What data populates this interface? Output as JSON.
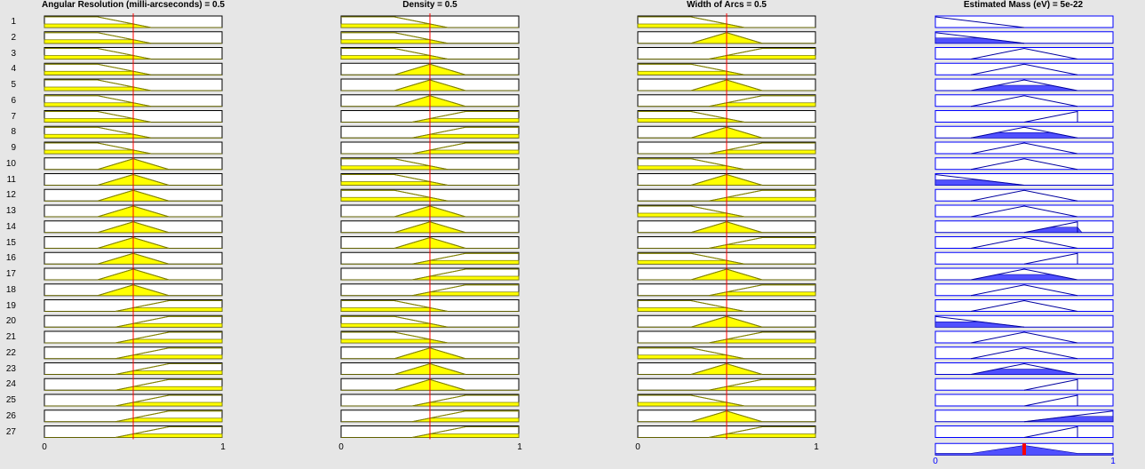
{
  "inputs": [
    {
      "title": "Angular Resolution (milli-arcseconds) = 0.5",
      "value": 0.5,
      "range": [
        0,
        1
      ],
      "tick_min": "0",
      "tick_max": "1",
      "mf_per_rule": [
        "low",
        "low",
        "low",
        "low",
        "low",
        "low",
        "low",
        "low",
        "low",
        "med",
        "med",
        "med",
        "med",
        "med",
        "med",
        "med",
        "med",
        "med",
        "high",
        "high",
        "high",
        "high",
        "high",
        "high",
        "high",
        "high",
        "high"
      ]
    },
    {
      "title": "Density = 0.5",
      "value": 0.5,
      "range": [
        0,
        1
      ],
      "tick_min": "0",
      "tick_max": "1",
      "mf_per_rule": [
        "low",
        "low",
        "low",
        "med",
        "med",
        "med",
        "high",
        "high",
        "high",
        "low",
        "low",
        "low",
        "med",
        "med",
        "med",
        "high",
        "high",
        "high",
        "low",
        "low",
        "low",
        "med",
        "med",
        "med",
        "high",
        "high",
        "high"
      ]
    },
    {
      "title": "Width of Arcs = 0.5",
      "value": 0.5,
      "range": [
        0,
        1
      ],
      "tick_min": "0",
      "tick_max": "1",
      "mf_per_rule": [
        "low",
        "med",
        "high",
        "low",
        "med",
        "high",
        "low",
        "med",
        "high",
        "low",
        "med",
        "high",
        "low",
        "med",
        "high",
        "low",
        "med",
        "high",
        "low",
        "med",
        "high",
        "low",
        "med",
        "high",
        "low",
        "med",
        "high"
      ]
    }
  ],
  "output": {
    "title": "Estimated Mass (eV) = 5e-22",
    "value": 0.5,
    "range": [
      0,
      1
    ],
    "tick_min": "0",
    "tick_max": "1",
    "mf_per_rule": [
      "vlow",
      "vlow",
      "low",
      "low",
      "med",
      "low",
      "high",
      "med",
      "med",
      "low",
      "vlow",
      "low",
      "med",
      "high",
      "med",
      "high",
      "med",
      "med",
      "low",
      "vlow",
      "low",
      "med",
      "med",
      "high",
      "high",
      "vhigh",
      "high"
    ],
    "firing": [
      0,
      1,
      0,
      0,
      1,
      0,
      0,
      1,
      0,
      0,
      1,
      0,
      0,
      1,
      0,
      0,
      1,
      0,
      0,
      1,
      0,
      0,
      1,
      0,
      0,
      1,
      0
    ]
  },
  "rules": [
    "1",
    "2",
    "3",
    "4",
    "5",
    "6",
    "7",
    "8",
    "9",
    "10",
    "11",
    "12",
    "13",
    "14",
    "15",
    "16",
    "17",
    "18",
    "19",
    "20",
    "21",
    "22",
    "23",
    "24",
    "25",
    "26",
    "27"
  ],
  "colors": {
    "input_fill": "#ffff00",
    "input_line": "#808000",
    "output_fill": "#5050ff",
    "output_line": "#0000a0",
    "indicator": "#ff0000",
    "box_border_input": "#000000",
    "box_border_output": "#0000ff"
  }
}
